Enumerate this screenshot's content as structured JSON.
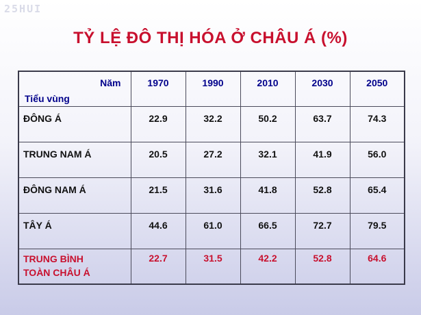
{
  "watermark": "25HUI",
  "title": "TỶ LỆ ĐÔ THỊ HÓA Ở CHÂU Á  (%)",
  "table": {
    "header_year_label": "Năm",
    "header_region_label": "Tiểu vùng",
    "years": [
      "1970",
      "1990",
      "2010",
      "2030",
      "2050"
    ],
    "rows": [
      {
        "region": "ĐÔNG Á",
        "values": [
          "22.9",
          "32.2",
          "50.2",
          "63.7",
          "74.3"
        ]
      },
      {
        "region": "TRUNG NAM Á",
        "values": [
          "20.5",
          "27.2",
          "32.1",
          "41.9",
          "56.0"
        ]
      },
      {
        "region": "ĐÔNG NAM Á",
        "values": [
          "21.5",
          "31.6",
          "41.8",
          "52.8",
          "65.4"
        ]
      },
      {
        "region": "TÂY Á",
        "values": [
          "44.6",
          "61.0",
          "66.5",
          "72.7",
          "79.5"
        ]
      }
    ],
    "average_row": {
      "region_line1": "TRUNG BÌNH",
      "region_line2": "TOÀN CHÂU Á",
      "values": [
        "22.7",
        "31.5",
        "42.2",
        "52.8",
        "64.6"
      ]
    }
  },
  "colors": {
    "title": "#c8102e",
    "header_text": "#00008b",
    "average_text": "#c8102e",
    "body_text": "#111111"
  }
}
